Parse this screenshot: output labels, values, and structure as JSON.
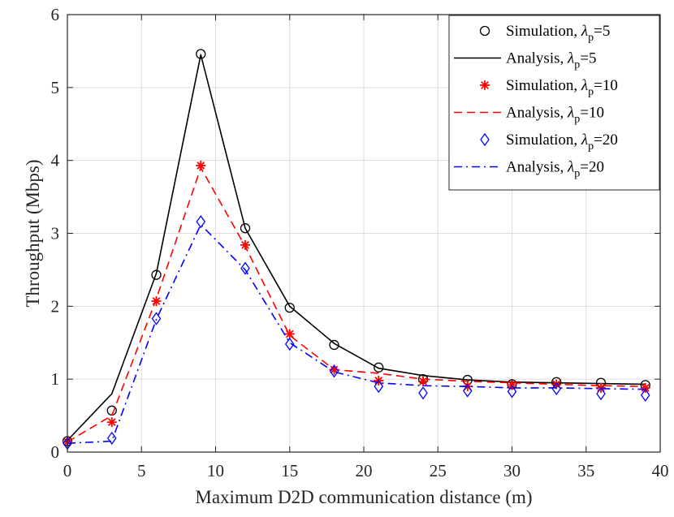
{
  "chart_data": {
    "type": "line",
    "title": "",
    "xlabel": "Maximum D2D communication distance (m)",
    "ylabel": "Throughput (Mbps)",
    "xlim": [
      0,
      40
    ],
    "ylim": [
      0,
      6
    ],
    "xticks": [
      0,
      5,
      10,
      15,
      20,
      25,
      30,
      35,
      40
    ],
    "yticks": [
      0,
      1,
      2,
      3,
      4,
      5,
      6
    ],
    "grid": true,
    "legend_position": "top-right",
    "series": [
      {
        "name": "Simulation, λp=5",
        "legend_prefix": "Simulation, ",
        "legend_greek": "λ",
        "legend_sub": "p",
        "legend_suffix": "=5",
        "style": "marker",
        "marker": "circle",
        "color": "#000000",
        "x": [
          0,
          3,
          6,
          9,
          12,
          15,
          18,
          21,
          24,
          27,
          30,
          33,
          36,
          39
        ],
        "y": [
          0.15,
          0.57,
          2.43,
          5.46,
          3.07,
          1.98,
          1.47,
          1.16,
          1.0,
          0.99,
          0.93,
          0.96,
          0.95,
          0.92
        ]
      },
      {
        "name": "Analysis, λp=5",
        "legend_prefix": "Analysis, ",
        "legend_greek": "λ",
        "legend_sub": "p",
        "legend_suffix": "=5",
        "style": "solid",
        "color": "#000000",
        "x": [
          0,
          3,
          6,
          9,
          12,
          15,
          18,
          21,
          24,
          27,
          30,
          33,
          36,
          39
        ],
        "y": [
          0.16,
          0.8,
          2.45,
          5.45,
          3.07,
          2.0,
          1.49,
          1.15,
          1.05,
          0.99,
          0.96,
          0.95,
          0.94,
          0.93
        ]
      },
      {
        "name": "Simulation, λp=10",
        "legend_prefix": "Simulation, ",
        "legend_greek": "λ",
        "legend_sub": "p",
        "legend_suffix": "=10",
        "style": "marker",
        "marker": "asterisk",
        "color": "#ff0000",
        "x": [
          0,
          3,
          6,
          9,
          12,
          15,
          18,
          21,
          24,
          27,
          30,
          33,
          36,
          39
        ],
        "y": [
          0.14,
          0.41,
          2.07,
          3.93,
          2.84,
          1.62,
          1.13,
          0.98,
          0.97,
          0.9,
          0.92,
          0.93,
          0.88,
          0.88
        ]
      },
      {
        "name": "Analysis, λp=10",
        "legend_prefix": "Analysis, ",
        "legend_greek": "λ",
        "legend_sub": "p",
        "legend_suffix": "=10",
        "style": "dashed",
        "color": "#ff0000",
        "x": [
          0,
          3,
          6,
          9,
          12,
          15,
          18,
          21,
          24,
          27,
          30,
          33,
          36,
          39
        ],
        "y": [
          0.14,
          0.5,
          2.1,
          3.9,
          2.82,
          1.6,
          1.13,
          1.08,
          1.0,
          0.97,
          0.95,
          0.93,
          0.91,
          0.9
        ]
      },
      {
        "name": "Simulation, λp=20",
        "legend_prefix": "Simulation, ",
        "legend_greek": "λ",
        "legend_sub": "p",
        "legend_suffix": "=20",
        "style": "marker",
        "marker": "diamond",
        "color": "#0000ff",
        "x": [
          0,
          3,
          6,
          9,
          12,
          15,
          18,
          21,
          24,
          27,
          30,
          33,
          36,
          39
        ],
        "y": [
          0.12,
          0.19,
          1.83,
          3.16,
          2.52,
          1.48,
          1.11,
          0.9,
          0.81,
          0.84,
          0.83,
          0.87,
          0.8,
          0.78
        ]
      },
      {
        "name": "Analysis, λp=20",
        "legend_prefix": "Analysis, ",
        "legend_greek": "λ",
        "legend_sub": "p",
        "legend_suffix": "=20",
        "style": "dashdot",
        "color": "#0000ff",
        "x": [
          0,
          3,
          6,
          9,
          12,
          15,
          18,
          21,
          24,
          27,
          30,
          33,
          36,
          39
        ],
        "y": [
          0.12,
          0.15,
          1.82,
          3.12,
          2.5,
          1.5,
          1.1,
          0.95,
          0.91,
          0.9,
          0.88,
          0.88,
          0.87,
          0.86
        ]
      }
    ]
  }
}
